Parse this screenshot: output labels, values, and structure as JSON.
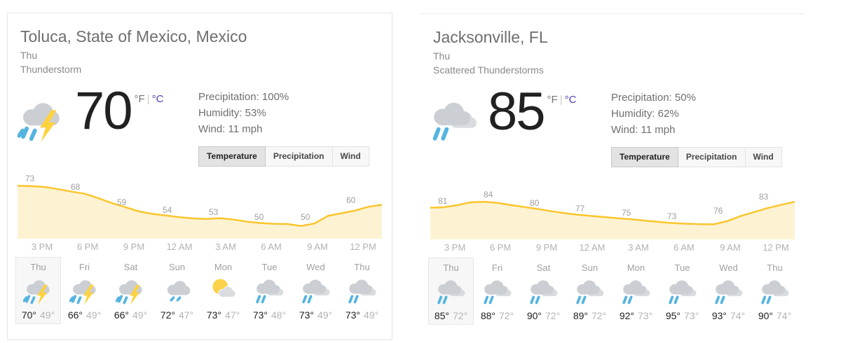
{
  "units": {
    "fahrenheit": "°F",
    "separator": "|",
    "celsius": "°C"
  },
  "tabs": [
    "Temperature",
    "Precipitation",
    "Wind"
  ],
  "selected_tab": "Temperature",
  "colors": {
    "chart_line": "#fbc52d",
    "chart_fill": "#fdf3d3",
    "rain_blue": "#54b4e0",
    "bolt_yellow": "#fdd23e",
    "cloud_gray": "#cbced2",
    "link_purple": "#4f42b5"
  },
  "widgets": [
    {
      "location": "Toluca, State of Mexico, Mexico",
      "date_label": "Thu",
      "condition": "Thunderstorm",
      "current": {
        "temp": "70",
        "icon": "thunderstorm"
      },
      "details": [
        "Precipitation: 100%",
        "Humidity: 53%",
        "Wind: 11 mph"
      ],
      "chart_data": {
        "type": "area",
        "x_ticks": [
          "3 PM",
          "6 PM",
          "9 PM",
          "12 AM",
          "3 AM",
          "6 AM",
          "9 AM",
          "12 PM"
        ],
        "point_labels": [
          73,
          68,
          59,
          54,
          53,
          50,
          50,
          60
        ],
        "curve": [
          73,
          72.8,
          72.3,
          71,
          69.5,
          68.2,
          65.5,
          62.5,
          60,
          57.5,
          56,
          55,
          54,
          53.3,
          53,
          53.4,
          52.6,
          51.3,
          50.5,
          50,
          49.9,
          48.7,
          50.2,
          54.8,
          56.4,
          58,
          60.3,
          61.5
        ],
        "y_range": [
          41,
          77
        ],
        "line_color": "#fbc52d",
        "area_color": "#fdf3d3"
      },
      "forecast": [
        {
          "day": "Thu",
          "icon": "thunderstorm",
          "high": "70°",
          "low": "49°",
          "selected": true
        },
        {
          "day": "Fri",
          "icon": "thunderstorm",
          "high": "66°",
          "low": "49°",
          "selected": false
        },
        {
          "day": "Sat",
          "icon": "thunderstorm",
          "high": "66°",
          "low": "49°",
          "selected": false
        },
        {
          "day": "Sun",
          "icon": "drizzle",
          "high": "72°",
          "low": "47°",
          "selected": false
        },
        {
          "day": "Mon",
          "icon": "partly-cloudy",
          "high": "73°",
          "low": "47°",
          "selected": false
        },
        {
          "day": "Tue",
          "icon": "scattered-showers",
          "high": "73°",
          "low": "48°",
          "selected": false
        },
        {
          "day": "Wed",
          "icon": "scattered-showers",
          "high": "73°",
          "low": "49°",
          "selected": false
        },
        {
          "day": "Thu",
          "icon": "scattered-showers",
          "high": "73°",
          "low": "49°",
          "selected": false
        }
      ]
    },
    {
      "location": "Jacksonville, FL",
      "date_label": "Thu",
      "condition": "Scattered Thunderstorms",
      "current": {
        "temp": "85",
        "icon": "scattered-showers"
      },
      "details": [
        "Precipitation: 50%",
        "Humidity: 62%",
        "Wind: 11 mph"
      ],
      "chart_data": {
        "type": "area",
        "x_ticks": [
          "3 PM",
          "6 PM",
          "9 PM",
          "12 AM",
          "3 AM",
          "6 AM",
          "9 AM",
          "12 PM"
        ],
        "point_labels": [
          81,
          84,
          80,
          77,
          75,
          73,
          76,
          83
        ],
        "curve": [
          81,
          81.2,
          82.3,
          83.7,
          84,
          83.4,
          82.3,
          81.3,
          80.3,
          79.2,
          78.2,
          77.4,
          76.8,
          76.2,
          75.6,
          75.1,
          74.4,
          73.8,
          73.2,
          72.9,
          72.7,
          72.6,
          74.2,
          76.8,
          78.8,
          80.8,
          82.4,
          84
        ],
        "y_range": [
          65,
          95
        ],
        "line_color": "#fbc52d",
        "area_color": "#fdf3d3"
      },
      "forecast": [
        {
          "day": "Thu",
          "icon": "scattered-showers",
          "high": "85°",
          "low": "72°",
          "selected": true
        },
        {
          "day": "Fri",
          "icon": "scattered-showers",
          "high": "88°",
          "low": "72°",
          "selected": false
        },
        {
          "day": "Sat",
          "icon": "scattered-showers",
          "high": "90°",
          "low": "72°",
          "selected": false
        },
        {
          "day": "Sun",
          "icon": "scattered-showers",
          "high": "89°",
          "low": "72°",
          "selected": false
        },
        {
          "day": "Mon",
          "icon": "scattered-showers",
          "high": "92°",
          "low": "73°",
          "selected": false
        },
        {
          "day": "Tue",
          "icon": "scattered-showers",
          "high": "95°",
          "low": "73°",
          "selected": false
        },
        {
          "day": "Wed",
          "icon": "scattered-showers",
          "high": "93°",
          "low": "74°",
          "selected": false
        },
        {
          "day": "Thu",
          "icon": "scattered-showers",
          "high": "90°",
          "low": "74°",
          "selected": false
        }
      ]
    }
  ]
}
